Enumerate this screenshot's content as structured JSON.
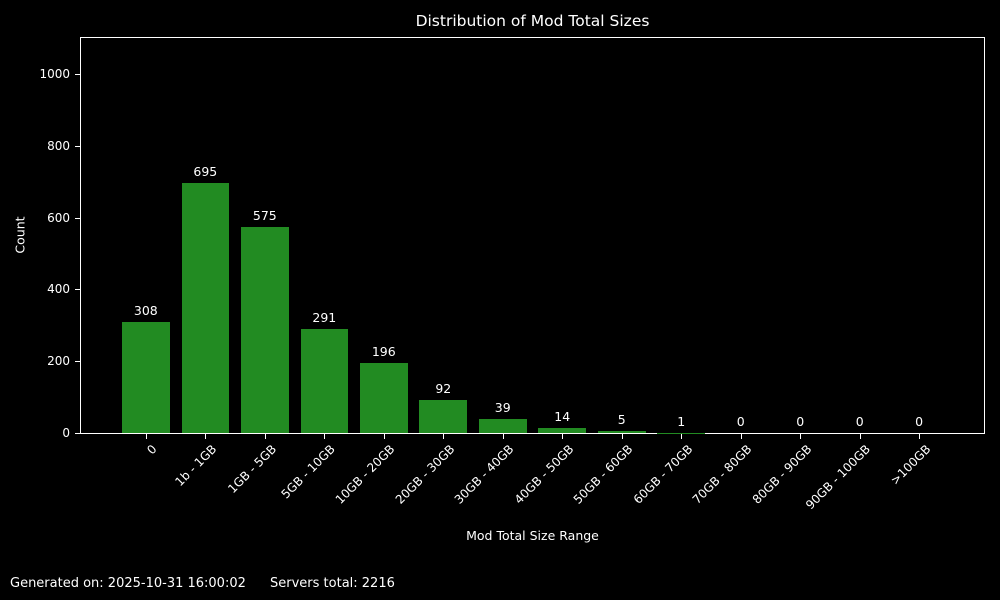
{
  "title": "Distribution of Mod Total Sizes",
  "colors": {
    "background": "#000000",
    "text": "#ffffff",
    "bar": "#228B22",
    "axis": "#ffffff"
  },
  "footer": {
    "generated": "Generated on: 2025-10-31 16:00:02",
    "servers_total": "Servers total: 2216"
  },
  "chart_data": {
    "type": "bar",
    "title": "Distribution of Mod Total Sizes",
    "xlabel": "Mod Total Size Range",
    "ylabel": "Count",
    "categories": [
      "0",
      "1b - 1GB",
      "1GB - 5GB",
      "5GB - 10GB",
      "10GB - 20GB",
      "20GB - 30GB",
      "30GB - 40GB",
      "40GB - 50GB",
      "50GB - 60GB",
      "60GB - 70GB",
      "70GB - 80GB",
      "80GB - 90GB",
      "90GB - 100GB",
      ">100GB"
    ],
    "values": [
      308,
      695,
      575,
      291,
      196,
      92,
      39,
      14,
      5,
      1,
      0,
      0,
      0,
      0
    ],
    "ylim": [
      0,
      1100
    ],
    "yticks": [
      0,
      200,
      400,
      600,
      800,
      1000
    ],
    "bar_color": "#228B22",
    "background": "#000000",
    "text_color": "#ffffff",
    "grid": false,
    "legend": "none",
    "value_labels_shown": true,
    "xtick_rotation_deg": 45
  }
}
